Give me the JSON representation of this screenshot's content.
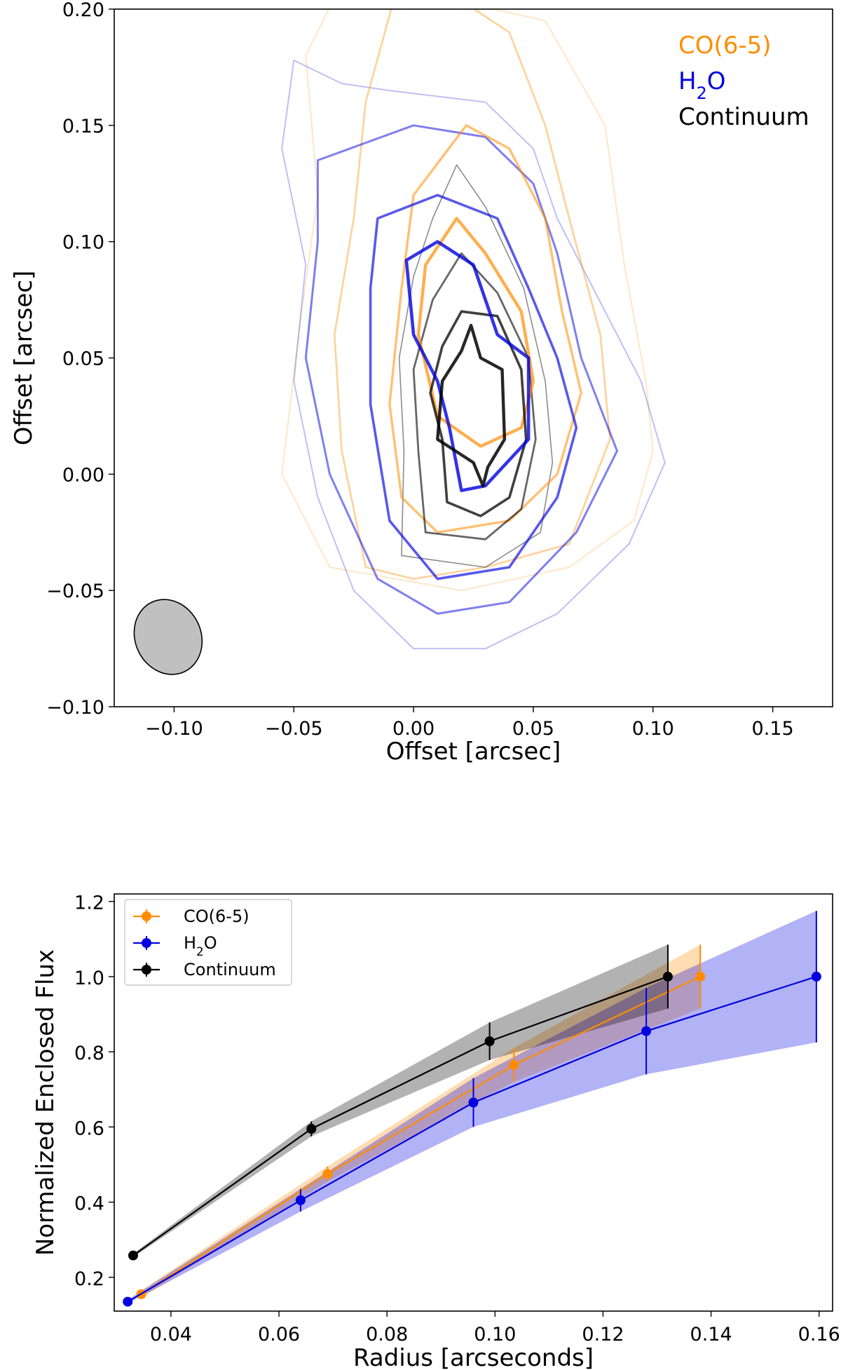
{
  "chart_data": [
    {
      "type": "contour",
      "title": "",
      "xlabel": "Offset [arcsec]",
      "ylabel": "Offset [arcsec]",
      "xlim": [
        -0.125,
        0.175
      ],
      "ylim": [
        -0.1,
        0.2
      ],
      "xticks": [
        -0.1,
        -0.05,
        0.0,
        0.05,
        0.1,
        0.15
      ],
      "yticks": [
        -0.1,
        -0.05,
        0.0,
        0.05,
        0.1,
        0.15,
        0.2
      ],
      "xtick_labels": [
        "−0.10",
        "−0.05",
        "0.00",
        "0.05",
        "0.10",
        "0.15"
      ],
      "ytick_labels": [
        "−0.10",
        "−0.05",
        "0.00",
        "0.05",
        "0.10",
        "0.15",
        "0.20"
      ],
      "legend": {
        "position": "top-right",
        "entries": [
          {
            "label": "CO(6-5)",
            "color": "#ff8c00"
          },
          {
            "label": "H₂O",
            "color": "#0000e0"
          },
          {
            "label": "Continuum",
            "color": "#000000"
          }
        ]
      },
      "beam": {
        "center": [
          -0.1025,
          -0.07
        ],
        "major": 0.033,
        "minor": 0.0275,
        "color": "#c0c0c0"
      },
      "series": [
        {
          "name": "Continuum",
          "color": "#000000",
          "levels": [
            {
              "opacity": 0.45,
              "width": 1.6,
              "points": [
                [
                  0.018,
                  0.133
                ],
                [
                  0.03,
                  0.115
                ],
                [
                  0.046,
                  0.08
                ],
                [
                  0.055,
                  0.04
                ],
                [
                  0.058,
                  0.005
                ],
                [
                  0.053,
                  -0.025
                ],
                [
                  0.03,
                  -0.04
                ],
                [
                  -0.005,
                  -0.035
                ],
                [
                  -0.004,
                  0.01
                ],
                [
                  -0.006,
                  0.05
                ],
                [
                  0.0,
                  0.085
                ],
                [
                  0.008,
                  0.11
                ]
              ]
            },
            {
              "opacity": 0.6,
              "width": 2.8,
              "points": [
                [
                  0.02,
                  0.095
                ],
                [
                  0.035,
                  0.078
                ],
                [
                  0.048,
                  0.05
                ],
                [
                  0.051,
                  0.015
                ],
                [
                  0.045,
                  -0.015
                ],
                [
                  0.03,
                  -0.028
                ],
                [
                  0.005,
                  -0.025
                ],
                [
                  0.002,
                  0.01
                ],
                [
                  0.0,
                  0.045
                ],
                [
                  0.008,
                  0.075
                ]
              ]
            },
            {
              "opacity": 0.75,
              "width": 3.6,
              "points": [
                [
                  0.02,
                  0.07
                ],
                [
                  0.035,
                  0.068
                ],
                [
                  0.045,
                  0.045
                ],
                [
                  0.047,
                  0.015
                ],
                [
                  0.04,
                  -0.01
                ],
                [
                  0.028,
                  -0.018
                ],
                [
                  0.014,
                  -0.012
                ],
                [
                  0.012,
                  0.015
                ],
                [
                  0.007,
                  0.035
                ],
                [
                  0.012,
                  0.055
                ]
              ]
            },
            {
              "opacity": 0.85,
              "width": 4.4,
              "points": [
                [
                  0.024,
                  0.064
                ],
                [
                  0.028,
                  0.05
                ],
                [
                  0.037,
                  0.045
                ],
                [
                  0.038,
                  0.015
                ],
                [
                  0.031,
                  0.003
                ],
                [
                  0.029,
                  -0.005
                ],
                [
                  0.025,
                  0.005
                ],
                [
                  0.01,
                  0.015
                ],
                [
                  0.012,
                  0.04
                ],
                [
                  0.02,
                  0.053
                ]
              ]
            }
          ]
        },
        {
          "name": "CO(6-5)",
          "color": "#ff8c00",
          "levels": [
            {
              "opacity": 0.22,
              "width": 2.0,
              "points": [
                [
                  -0.033,
                  0.205
                ],
                [
                  0.012,
                  0.205
                ],
                [
                  0.055,
                  0.195
                ],
                [
                  0.08,
                  0.15
                ],
                [
                  0.088,
                  0.09
                ],
                [
                  0.097,
                  0.04
                ],
                [
                  0.1,
                  0.01
                ],
                [
                  0.092,
                  -0.02
                ],
                [
                  0.065,
                  -0.04
                ],
                [
                  0.02,
                  -0.05
                ],
                [
                  -0.035,
                  -0.04
                ],
                [
                  -0.055,
                  0.0
                ],
                [
                  -0.048,
                  0.06
                ],
                [
                  -0.04,
                  0.12
                ],
                [
                  -0.045,
                  0.18
                ]
              ]
            },
            {
              "opacity": 0.4,
              "width": 2.6,
              "points": [
                [
                  -0.008,
                  0.205
                ],
                [
                  0.018,
                  0.205
                ],
                [
                  0.04,
                  0.19
                ],
                [
                  0.055,
                  0.15
                ],
                [
                  0.065,
                  0.11
                ],
                [
                  0.078,
                  0.06
                ],
                [
                  0.082,
                  0.015
                ],
                [
                  0.065,
                  -0.03
                ],
                [
                  0.03,
                  -0.04
                ],
                [
                  0.0,
                  -0.045
                ],
                [
                  -0.02,
                  -0.04
                ],
                [
                  -0.03,
                  0.01
                ],
                [
                  -0.033,
                  0.06
                ],
                [
                  -0.025,
                  0.11
                ],
                [
                  -0.02,
                  0.16
                ]
              ]
            },
            {
              "opacity": 0.55,
              "width": 3.4,
              "points": [
                [
                  0.022,
                  0.15
                ],
                [
                  0.04,
                  0.14
                ],
                [
                  0.055,
                  0.11
                ],
                [
                  0.062,
                  0.07
                ],
                [
                  0.07,
                  0.035
                ],
                [
                  0.06,
                  0.0
                ],
                [
                  0.04,
                  -0.02
                ],
                [
                  0.01,
                  -0.025
                ],
                [
                  -0.005,
                  -0.01
                ],
                [
                  -0.01,
                  0.03
                ],
                [
                  -0.005,
                  0.08
                ],
                [
                  0.0,
                  0.12
                ]
              ]
            },
            {
              "opacity": 0.7,
              "width": 4.4,
              "points": [
                [
                  0.018,
                  0.11
                ],
                [
                  0.03,
                  0.095
                ],
                [
                  0.045,
                  0.07
                ],
                [
                  0.05,
                  0.04
                ],
                [
                  0.045,
                  0.02
                ],
                [
                  0.028,
                  0.012
                ],
                [
                  0.01,
                  0.025
                ],
                [
                  0.002,
                  0.06
                ],
                [
                  0.005,
                  0.09
                ]
              ]
            }
          ]
        },
        {
          "name": "H₂O",
          "color": "#0000e0",
          "levels": [
            {
              "opacity": 0.25,
              "width": 2.0,
              "points": [
                [
                  -0.05,
                  0.178
                ],
                [
                  -0.03,
                  0.168
                ],
                [
                  -0.01,
                  0.165
                ],
                [
                  0.03,
                  0.16
                ],
                [
                  0.05,
                  0.14
                ],
                [
                  0.06,
                  0.11
                ],
                [
                  0.075,
                  0.08
                ],
                [
                  0.095,
                  0.04
                ],
                [
                  0.105,
                  0.005
                ],
                [
                  0.09,
                  -0.03
                ],
                [
                  0.06,
                  -0.06
                ],
                [
                  0.03,
                  -0.075
                ],
                [
                  0.0,
                  -0.075
                ],
                [
                  -0.025,
                  -0.05
                ],
                [
                  -0.04,
                  -0.01
                ],
                [
                  -0.05,
                  0.04
                ],
                [
                  -0.045,
                  0.09
                ],
                [
                  -0.055,
                  0.14
                ]
              ]
            },
            {
              "opacity": 0.5,
              "width": 3.0,
              "points": [
                [
                  -0.04,
                  0.135
                ],
                [
                  0.0,
                  0.15
                ],
                [
                  0.03,
                  0.145
                ],
                [
                  0.05,
                  0.125
                ],
                [
                  0.06,
                  0.095
                ],
                [
                  0.07,
                  0.05
                ],
                [
                  0.085,
                  0.01
                ],
                [
                  0.068,
                  -0.025
                ],
                [
                  0.04,
                  -0.055
                ],
                [
                  0.01,
                  -0.06
                ],
                [
                  -0.015,
                  -0.045
                ],
                [
                  -0.035,
                  0.0
                ],
                [
                  -0.045,
                  0.05
                ],
                [
                  -0.04,
                  0.1
                ]
              ]
            },
            {
              "opacity": 0.65,
              "width": 3.6,
              "points": [
                [
                  -0.015,
                  0.11
                ],
                [
                  0.01,
                  0.12
                ],
                [
                  0.035,
                  0.11
                ],
                [
                  0.048,
                  0.08
                ],
                [
                  0.06,
                  0.05
                ],
                [
                  0.068,
                  0.02
                ],
                [
                  0.06,
                  -0.01
                ],
                [
                  0.04,
                  -0.04
                ],
                [
                  0.01,
                  -0.045
                ],
                [
                  -0.01,
                  -0.02
                ],
                [
                  -0.018,
                  0.03
                ],
                [
                  -0.018,
                  0.08
                ]
              ]
            },
            {
              "opacity": 0.8,
              "width": 4.6,
              "points": [
                [
                  -0.003,
                  0.092
                ],
                [
                  0.01,
                  0.1
                ],
                [
                  0.025,
                  0.09
                ],
                [
                  0.035,
                  0.06
                ],
                [
                  0.048,
                  0.05
                ],
                [
                  0.048,
                  0.015
                ],
                [
                  0.03,
                  -0.005
                ],
                [
                  0.02,
                  -0.007
                ],
                [
                  0.015,
                  0.02
                ],
                [
                  0.01,
                  0.04
                ],
                [
                  0.0,
                  0.06
                ]
              ]
            }
          ]
        }
      ]
    },
    {
      "type": "line",
      "title": "",
      "xlabel": "Radius [arcseconds]",
      "ylabel": "Normalized Enclosed Flux",
      "xlim": [
        0.0295,
        0.1625
      ],
      "ylim": [
        0.11,
        1.22
      ],
      "xticks": [
        0.04,
        0.06,
        0.08,
        0.1,
        0.12,
        0.14,
        0.16
      ],
      "yticks": [
        0.2,
        0.4,
        0.6,
        0.8,
        1.0,
        1.2
      ],
      "xtick_labels": [
        "0.04",
        "0.06",
        "0.08",
        "0.10",
        "0.12",
        "0.14",
        "0.16"
      ],
      "ytick_labels": [
        "0.2",
        "0.4",
        "0.6",
        "0.8",
        "1.0",
        "1.2"
      ],
      "legend": {
        "position": "top-left",
        "entries": [
          "CO(6-5)",
          "H₂O",
          "Continuum"
        ]
      },
      "series": [
        {
          "name": "CO(6-5)",
          "color": "#ff8c00",
          "x": [
            0.0345,
            0.069,
            0.1035,
            0.138
          ],
          "y": [
            0.155,
            0.475,
            0.765,
            1.0
          ],
          "err": [
            0.01,
            0.02,
            0.045,
            0.085
          ]
        },
        {
          "name": "H₂O",
          "color": "#0000e0",
          "x": [
            0.032,
            0.064,
            0.096,
            0.128,
            0.1595
          ],
          "y": [
            0.135,
            0.405,
            0.665,
            0.855,
            1.0
          ],
          "err": [
            0.005,
            0.03,
            0.065,
            0.115,
            0.175
          ]
        },
        {
          "name": "Continuum",
          "color": "#000000",
          "x": [
            0.033,
            0.066,
            0.099,
            0.132
          ],
          "y": [
            0.258,
            0.595,
            0.828,
            1.0
          ],
          "err": [
            0.005,
            0.02,
            0.05,
            0.085
          ]
        }
      ]
    }
  ]
}
